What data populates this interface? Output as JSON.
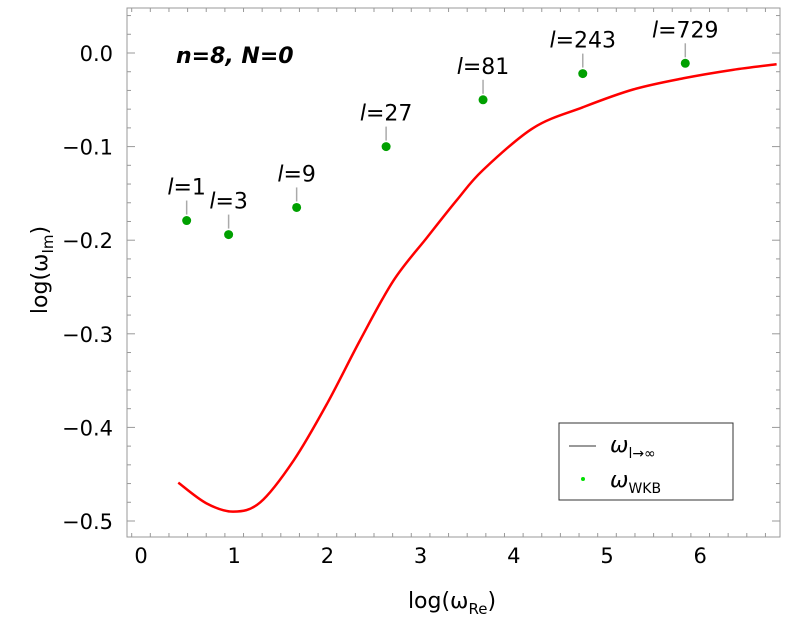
{
  "chart_data": {
    "type": "line",
    "annotation": "n=8, N=0",
    "xlabel": "log(ω_Re)",
    "ylabel": "log(ω_Im)",
    "xlabel_parts": {
      "main": "log(ω",
      "sub": "Re",
      "close": ")"
    },
    "ylabel_parts": {
      "main": "log(ω",
      "sub": "Im",
      "close": ")"
    },
    "xlim": [
      -0.15,
      6.85
    ],
    "ylim": [
      -0.517,
      0.048
    ],
    "xticks": [
      "0",
      "1",
      "2",
      "3",
      "4",
      "5",
      "6"
    ],
    "xtick_values": [
      0,
      1,
      2,
      3,
      4,
      5,
      6
    ],
    "yticks": [
      "0.0",
      "−0.1",
      "−0.2",
      "−0.3",
      "−0.4",
      "−0.5"
    ],
    "ytick_values": [
      0,
      -0.1,
      -0.2,
      -0.3,
      -0.4,
      -0.5
    ],
    "grid": false,
    "legend_position": "bottom-right",
    "series": [
      {
        "name": "ω_{l→∞}",
        "legend_main": "ω",
        "legend_sub": "l→∞",
        "kind": "line",
        "color": "#ff0000",
        "x": [
          0.4,
          0.7,
          0.99,
          1.28,
          1.64,
          2.0,
          2.35,
          2.71,
          3.07,
          3.39,
          3.67,
          4.21,
          4.74,
          5.28,
          5.82,
          6.35,
          6.82
        ],
        "y": [
          -0.459,
          -0.481,
          -0.49,
          -0.48,
          -0.435,
          -0.374,
          -0.307,
          -0.243,
          -0.197,
          -0.157,
          -0.125,
          -0.08,
          -0.058,
          -0.039,
          -0.027,
          -0.018,
          -0.012
        ]
      },
      {
        "name": "ω_WKB",
        "legend_main": "ω",
        "legend_sub": "WKB",
        "kind": "scatter",
        "color": "#00a000",
        "x": [
          0.49,
          0.94,
          1.67,
          2.63,
          3.67,
          4.74,
          5.84
        ],
        "y": [
          -0.179,
          -0.194,
          -0.165,
          -0.1,
          -0.05,
          -0.022,
          -0.011
        ],
        "labels": [
          "l=1",
          "l=3",
          "l=9",
          "l=27",
          "l=81",
          "l=243",
          "l=729"
        ],
        "label_l": "l",
        "label_values": [
          "=1",
          "=3",
          "=9",
          "=27",
          "=81",
          "=243",
          "=729"
        ]
      }
    ]
  }
}
